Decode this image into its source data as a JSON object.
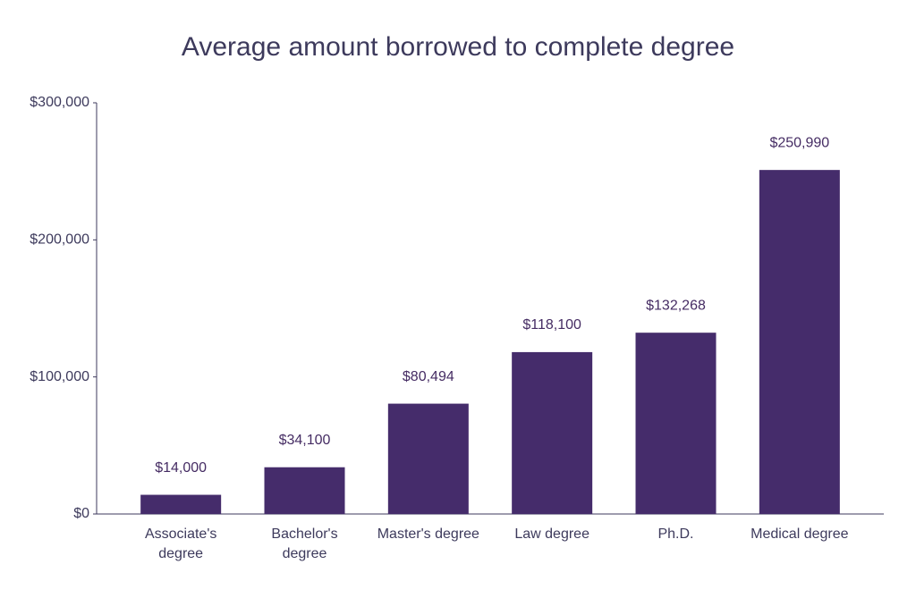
{
  "chart_data": {
    "type": "bar",
    "title": "Average amount borrowed to complete degree",
    "categories": [
      "Associate's degree",
      "Bachelor's degree",
      "Master's degree",
      "Law degree",
      "Ph.D.",
      "Medical degree"
    ],
    "values": [
      14000,
      34100,
      80494,
      118100,
      132268,
      250990
    ],
    "value_labels": [
      "$14,000",
      "$34,100",
      "$80,494",
      "$118,100",
      "$132,268",
      "$250,990"
    ],
    "color": "#452c6b",
    "ylim": [
      0,
      300000
    ],
    "yticks": [
      {
        "value": 0,
        "label": "$0"
      },
      {
        "value": 100000,
        "label": "$100,000"
      },
      {
        "value": 200000,
        "label": "$200,000"
      },
      {
        "value": 300000,
        "label": "$300,000"
      }
    ],
    "grid": false
  }
}
